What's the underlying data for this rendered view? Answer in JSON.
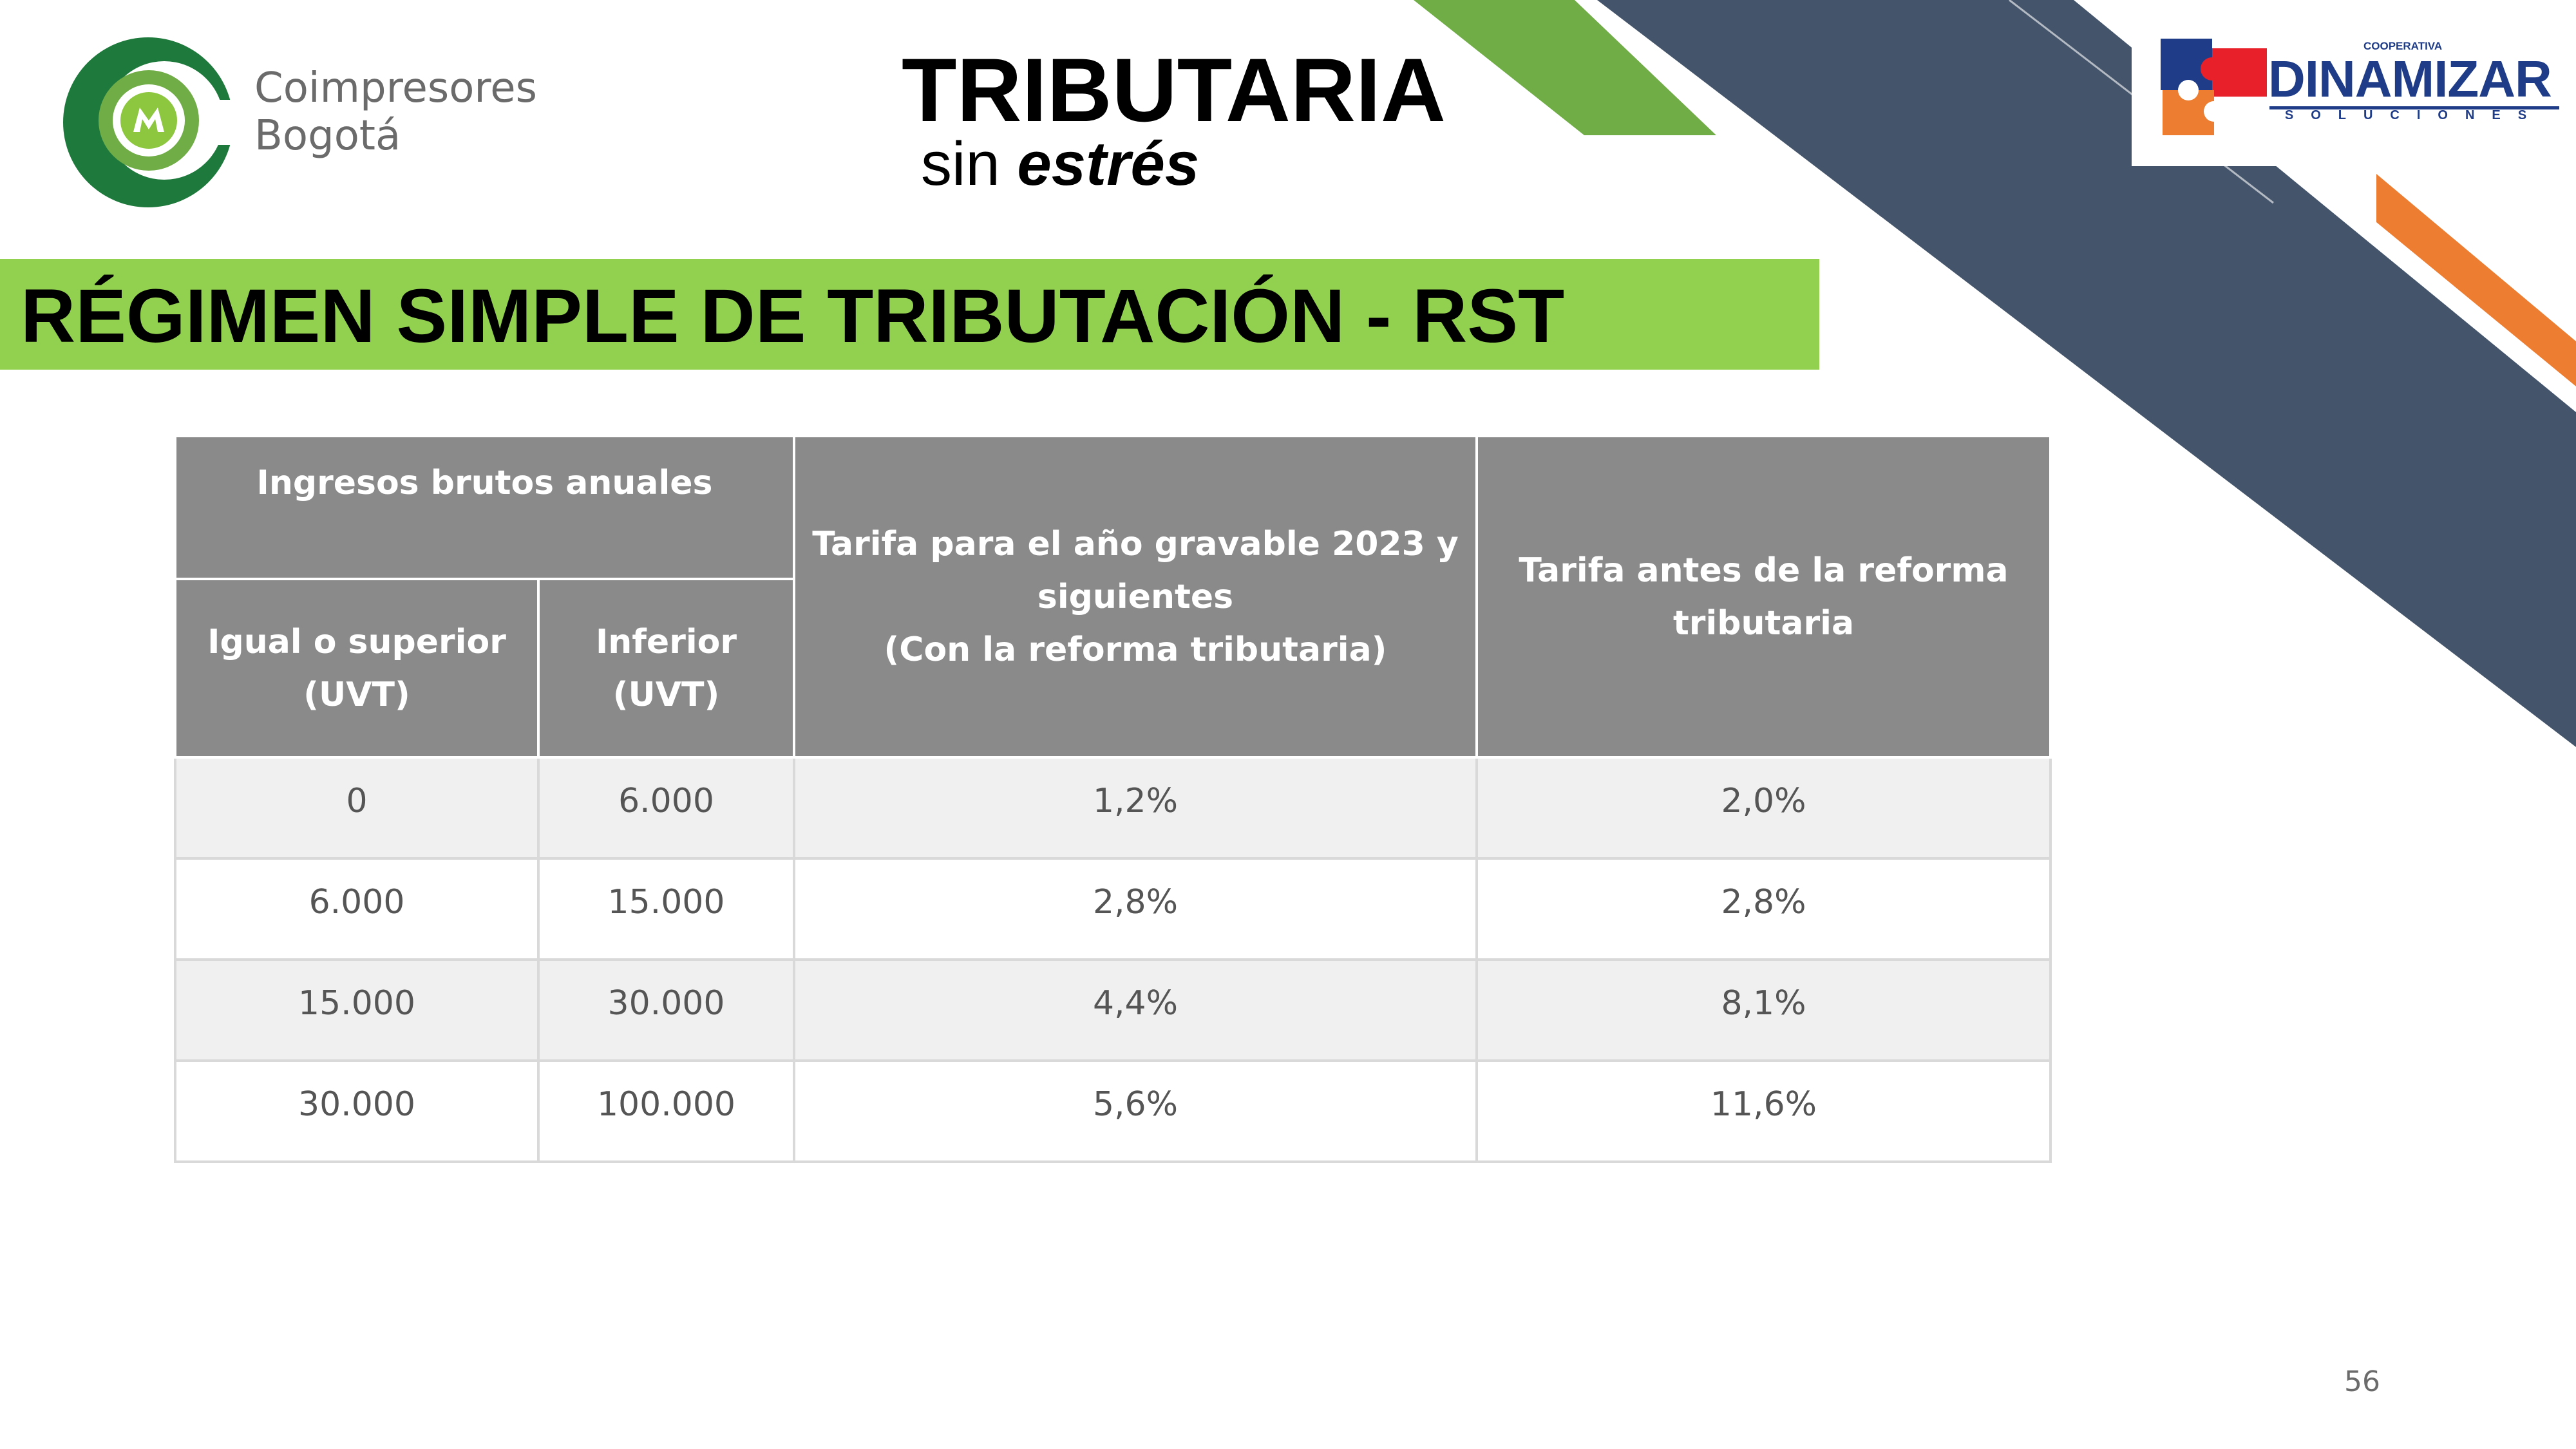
{
  "header": {
    "coimpresores_line1": "Coimpresores",
    "coimpresores_line2": "Bogotá",
    "title": "TRIBUTARIA",
    "subtitle_plain": "sin ",
    "subtitle_emph": "estrés",
    "dinamizar_top": "COOPERATIVA",
    "dinamizar_name": "DINAMIZAR",
    "dinamizar_sub": "SOLUCIONES"
  },
  "banner": {
    "text": "RÉGIMEN SIMPLE DE TRIBUTACIÓN - RST"
  },
  "table": {
    "group_header": "Ingresos brutos anuales",
    "col_min": [
      "Igual o superior",
      "(UVT)"
    ],
    "col_max": [
      "Inferior",
      "(UVT)"
    ],
    "col_new": [
      "Tarifa para el año gravable 2023 y",
      "siguientes",
      "(Con la reforma tributaria)"
    ],
    "col_old": [
      "Tarifa antes de la reforma",
      "tributaria"
    ],
    "rows": [
      {
        "min": "0",
        "max": "6.000",
        "new": "1,2%",
        "old": "2,0%"
      },
      {
        "min": "6.000",
        "max": "15.000",
        "new": "2,8%",
        "old": "2,8%"
      },
      {
        "min": "15.000",
        "max": "30.000",
        "new": "4,4%",
        "old": "8,1%"
      },
      {
        "min": "30.000",
        "max": "100.000",
        "new": "5,6%",
        "old": "11,6%"
      }
    ]
  },
  "footer": {
    "page_number": "56"
  },
  "colors": {
    "banner_green": "#92d050",
    "header_gray": "#8a8a8a",
    "navy_band": "#44546a",
    "accent_green": "#70ad47",
    "accent_orange": "#ed7d31",
    "dinamizar_blue": "#1f3c88",
    "dinamizar_red": "#e8202a"
  }
}
